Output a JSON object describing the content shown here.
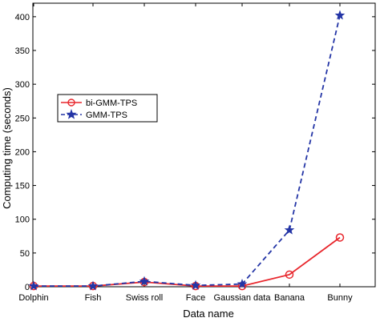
{
  "chart_data": {
    "type": "line",
    "title": "",
    "xlabel": "Data name",
    "ylabel": "Computing time (seconds)",
    "categories": [
      "Dolphin",
      "Fish",
      "Swiss roll",
      "Face",
      "Gaussian data",
      "Banana",
      "Bunny"
    ],
    "ylim": [
      0,
      420
    ],
    "yticks": [
      0,
      50,
      100,
      150,
      200,
      250,
      300,
      350,
      400
    ],
    "grid": false,
    "legend_position": "middle-left",
    "series": [
      {
        "name": "bi-GMM-TPS",
        "values": [
          1,
          1,
          7,
          1,
          1,
          18,
          73
        ],
        "color": "#e8272d",
        "line_style": "solid",
        "marker": "circle"
      },
      {
        "name": "GMM-TPS",
        "values": [
          1,
          1,
          8,
          2,
          4,
          84,
          402
        ],
        "color": "#2435a6",
        "line_style": "dashed",
        "marker": "star"
      }
    ]
  }
}
